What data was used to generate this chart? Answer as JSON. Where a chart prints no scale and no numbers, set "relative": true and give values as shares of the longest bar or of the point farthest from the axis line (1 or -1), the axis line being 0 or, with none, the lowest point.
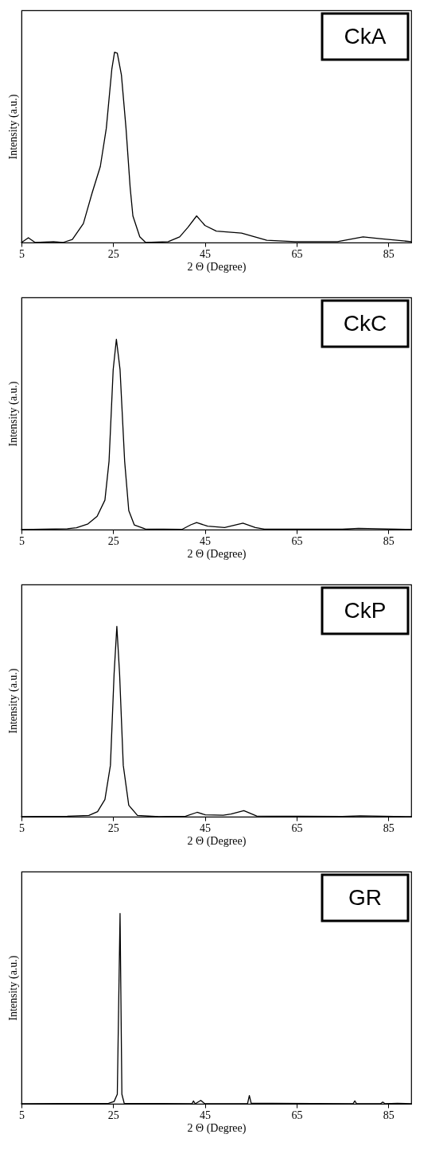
{
  "chart_data": [
    {
      "type": "line",
      "annotations": [
        "CkA"
      ],
      "xlabel": "2 Θ (Degree)",
      "ylabel": "Intensity (a.u.)",
      "relative": true,
      "color": "#000000",
      "xlim": [
        5,
        90
      ],
      "xticks": [
        5,
        25,
        45,
        65,
        85
      ],
      "x": [
        5,
        6.5,
        8,
        12,
        14,
        16.1,
        18.5,
        20.4,
        22.2,
        23.5,
        24.7,
        25.3,
        25.9,
        26.8,
        27.8,
        28.7,
        29.3,
        30.8,
        32.1,
        37,
        39.5,
        41.3,
        43.2,
        45,
        47.5,
        53,
        58.5,
        64.7,
        73.9,
        79.5,
        83.2,
        90
      ],
      "values": [
        0,
        0.025,
        0,
        0.005,
        0,
        0.016,
        0.1,
        0.26,
        0.4,
        0.6,
        0.91,
        1,
        0.995,
        0.88,
        0.6,
        0.29,
        0.14,
        0.03,
        0,
        0.005,
        0.03,
        0.08,
        0.14,
        0.09,
        0.06,
        0.05,
        0.012,
        0.005,
        0.005,
        0.03,
        0.02,
        0.005
      ]
    },
    {
      "type": "line",
      "annotations": [
        "CkC"
      ],
      "xlabel": "2 Θ (Degree)",
      "ylabel": "Intensity (a.u.)",
      "relative": true,
      "color": "#000000",
      "xlim": [
        5,
        90
      ],
      "xticks": [
        5,
        25,
        45,
        65,
        85
      ],
      "x": [
        5,
        15,
        17,
        19.5,
        21.5,
        23.2,
        24.1,
        25,
        25.7,
        26.5,
        27.5,
        28.4,
        29.6,
        32,
        40,
        41.9,
        43.2,
        45.6,
        49.3,
        53.3,
        56,
        58,
        75,
        78.5,
        90
      ],
      "values": [
        0,
        0.005,
        0.01,
        0.03,
        0.07,
        0.155,
        0.36,
        0.84,
        1,
        0.84,
        0.36,
        0.1,
        0.025,
        0.004,
        0.001,
        0.025,
        0.037,
        0.018,
        0.011,
        0.034,
        0.011,
        0.003,
        0.002,
        0.007,
        0.001
      ]
    },
    {
      "type": "line",
      "annotations": [
        "CkP"
      ],
      "xlabel": "2 Θ (Degree)",
      "ylabel": "Intensity (a.u.)",
      "relative": true,
      "color": "#000000",
      "xlim": [
        5,
        90
      ],
      "xticks": [
        5,
        25,
        45,
        65,
        85
      ],
      "x": [
        5,
        15,
        19.7,
        21.6,
        23.2,
        24.4,
        25.2,
        25.8,
        26.4,
        27.2,
        28.4,
        30.3,
        35,
        40.8,
        43.3,
        45.1,
        49,
        50.7,
        53.5,
        56.3,
        75,
        78.9,
        90
      ],
      "values": [
        0,
        0.003,
        0.007,
        0.027,
        0.09,
        0.27,
        0.75,
        1,
        0.75,
        0.27,
        0.06,
        0.007,
        0,
        0.003,
        0.023,
        0.01,
        0.008,
        0.014,
        0.032,
        0.004,
        0.001,
        0.005,
        0
      ]
    },
    {
      "type": "line",
      "annotations": [
        "GR"
      ],
      "xlabel": "2 Θ (Degree)",
      "ylabel": "Intensity (a.u.)",
      "relative": true,
      "color": "#000000",
      "xlim": [
        5,
        90
      ],
      "xticks": [
        5,
        25,
        45,
        65,
        85
      ],
      "x": [
        5,
        24,
        25.2,
        25.9,
        26.5,
        26.9,
        27.4,
        42.2,
        42.5,
        42.9,
        44.1,
        45,
        54.3,
        54.7,
        55.1,
        59.8,
        77.3,
        77.7,
        78.1,
        83.3,
        83.8,
        84.3,
        87,
        90
      ],
      "values": [
        0,
        0.003,
        0.012,
        0.05,
        1,
        0.05,
        0.003,
        0,
        0.015,
        0,
        0.018,
        0,
        0,
        0.043,
        0.003,
        0.003,
        0,
        0.015,
        0,
        0,
        0.009,
        0,
        0.003,
        0
      ]
    }
  ]
}
